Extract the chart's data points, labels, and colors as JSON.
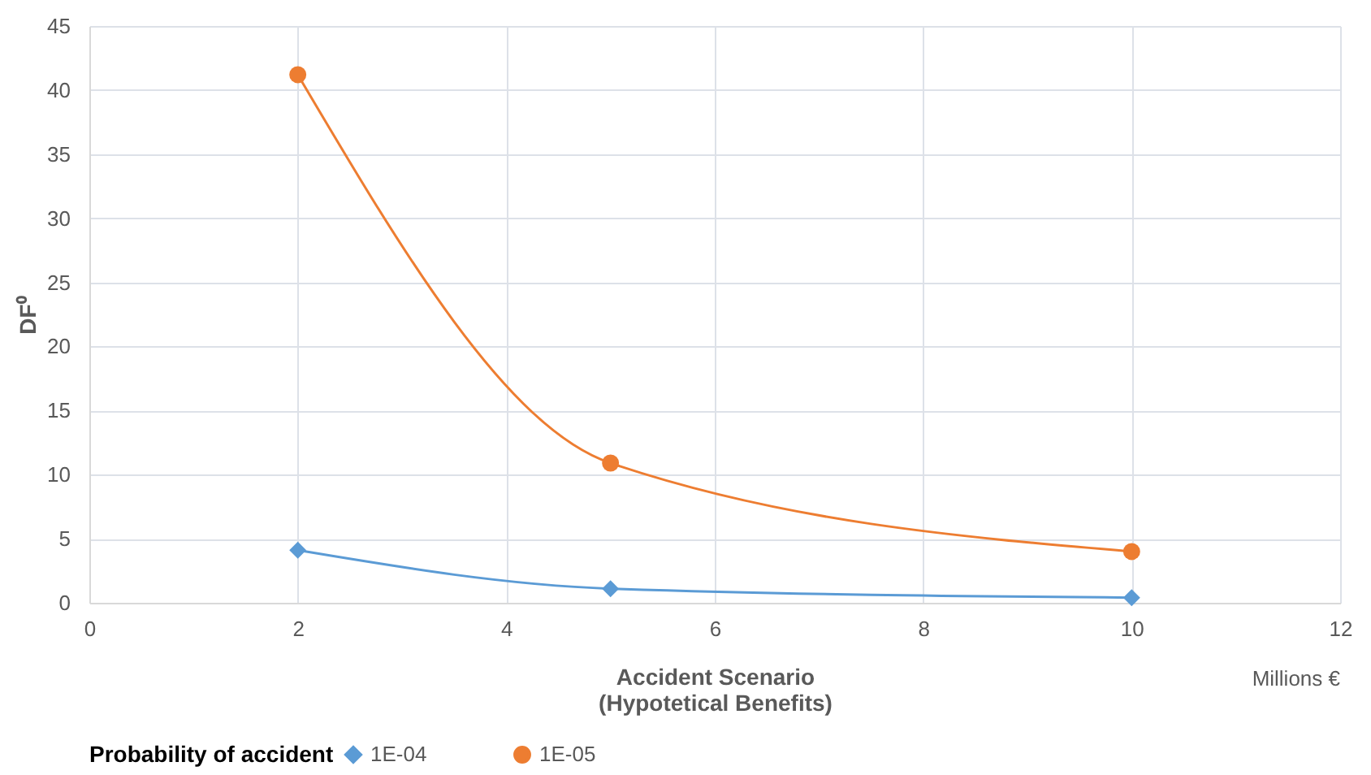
{
  "chart_data": {
    "type": "line",
    "xlabel": "Accident Scenario\n(Hypotetical Benefits)",
    "ylabel": "DF⁰",
    "legend_title": "Probability of accident",
    "annotations": [
      "Millions  €"
    ],
    "x": [
      2,
      5,
      10
    ],
    "series": [
      {
        "name": "1E-04",
        "color": "#5b9bd5",
        "marker": "diamond",
        "values": [
          4.1,
          1.1,
          0.4
        ]
      },
      {
        "name": "1E-05",
        "color": "#ed7d31",
        "marker": "circle",
        "values": [
          41.2,
          10.9,
          4.0
        ]
      }
    ],
    "xlim": [
      0,
      12
    ],
    "xticks": [
      0,
      2,
      4,
      6,
      8,
      10,
      12
    ],
    "ylim": [
      0,
      45
    ],
    "yticks": [
      0,
      5,
      10,
      15,
      20,
      25,
      30,
      35,
      40,
      45
    ],
    "grid": true,
    "legend": "bottom",
    "line_style": "solid"
  }
}
